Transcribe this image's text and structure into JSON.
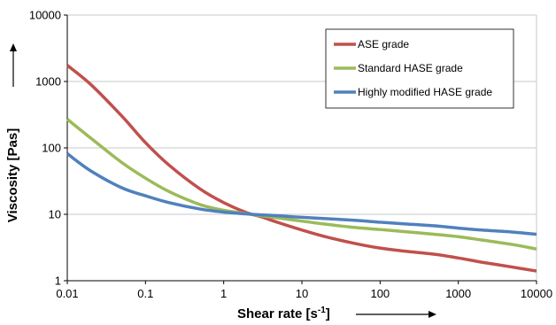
{
  "chart_data": {
    "type": "line",
    "xlabel": "Shear rate [s",
    "xlabel_sup": "-1",
    "xlabel_end": "]",
    "ylabel": "Viscosity [Pas]",
    "xscale": "log",
    "yscale": "log",
    "xlim": [
      0.01,
      10000
    ],
    "ylim": [
      1,
      10000
    ],
    "xticks": [
      0.01,
      0.1,
      1,
      10,
      100,
      1000,
      10000
    ],
    "xtick_labels": [
      "0.01",
      "0.1",
      "1",
      "10",
      "100",
      "1000",
      "10000"
    ],
    "yticks": [
      1,
      10,
      100,
      1000,
      10000
    ],
    "ytick_labels": [
      "1",
      "10",
      "100",
      "1000",
      "10000"
    ],
    "grid": "horizontal",
    "legend_position": "top-right",
    "series": [
      {
        "name": "ASE grade",
        "color": "#c0504d",
        "x": [
          0.01,
          0.02,
          0.05,
          0.1,
          0.2,
          0.5,
          1,
          2,
          3,
          5,
          10,
          20,
          50,
          100,
          200,
          500,
          1000,
          2000,
          5000,
          10000
        ],
        "y": [
          1750,
          900,
          300,
          120,
          55,
          24,
          15,
          10.5,
          9.2,
          7.5,
          5.8,
          4.6,
          3.6,
          3.1,
          2.8,
          2.5,
          2.2,
          1.9,
          1.6,
          1.4
        ]
      },
      {
        "name": "Standard HASE grade",
        "color": "#9bbb59",
        "x": [
          0.01,
          0.02,
          0.05,
          0.1,
          0.2,
          0.5,
          1,
          2,
          3,
          5,
          10,
          20,
          50,
          100,
          200,
          500,
          1000,
          2000,
          5000,
          10000
        ],
        "y": [
          270,
          140,
          60,
          35,
          22,
          14,
          11.5,
          10.2,
          9.5,
          8.8,
          7.9,
          7.1,
          6.3,
          5.9,
          5.5,
          5.0,
          4.6,
          4.1,
          3.5,
          3.0
        ]
      },
      {
        "name": "Highly modified HASE grade",
        "color": "#4f81bd",
        "x": [
          0.01,
          0.02,
          0.05,
          0.1,
          0.2,
          0.5,
          1,
          2,
          3,
          5,
          10,
          20,
          50,
          100,
          200,
          500,
          1000,
          2000,
          5000,
          10000
        ],
        "y": [
          82,
          45,
          25,
          19,
          15,
          12,
          10.8,
          10.1,
          9.8,
          9.5,
          9.0,
          8.6,
          8.1,
          7.6,
          7.2,
          6.7,
          6.2,
          5.8,
          5.4,
          5.0
        ]
      }
    ]
  }
}
